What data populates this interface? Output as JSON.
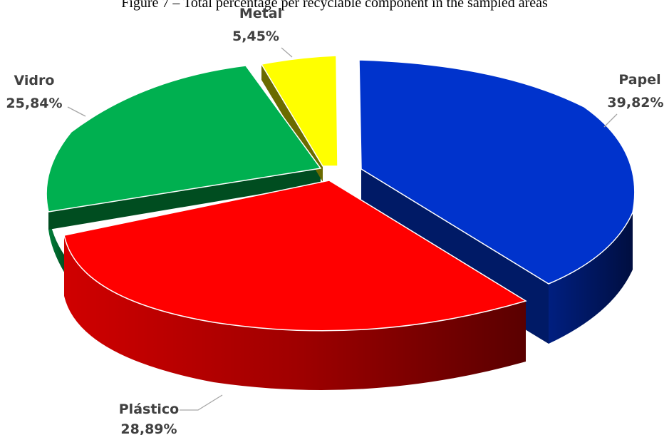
{
  "caption": "Figure 7 – Total percentage  per recyclable component in the sampled areas",
  "chart_data": {
    "type": "pie",
    "style": "3d-exploded",
    "legend": "none",
    "slices": [
      {
        "label": "Papel",
        "value": 39.82,
        "display": "39,82%",
        "color": "#0033CC",
        "side_color": "#001A66"
      },
      {
        "label": "Plástico",
        "value": 28.89,
        "display": "28,89%",
        "color": "#FF0000",
        "side_color": "#8B0000"
      },
      {
        "label": "Vidro",
        "value": 25.84,
        "display": "25,84%",
        "color": "#00B050",
        "side_color": "#004D20"
      },
      {
        "label": "Metal",
        "value": 5.45,
        "display": "5,45%",
        "color": "#FFFF00",
        "side_color": "#6B6B00"
      }
    ]
  }
}
